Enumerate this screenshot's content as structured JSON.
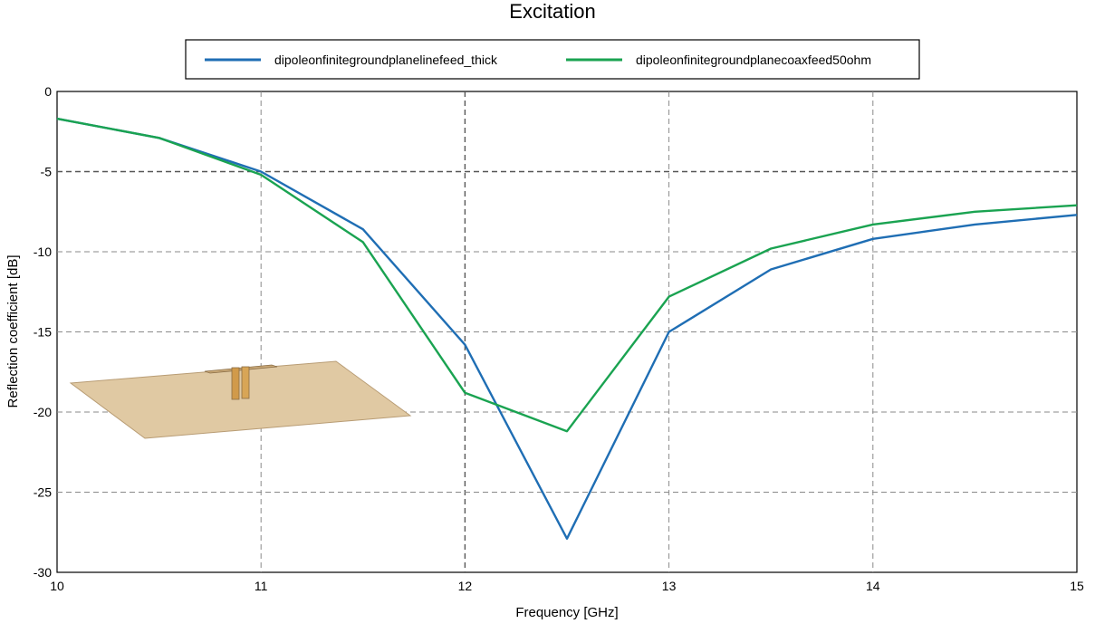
{
  "chart_data": {
    "type": "line",
    "title": "Excitation",
    "xlabel": "Frequency [GHz]",
    "ylabel": "Reflection coefficient [dB]",
    "xlim": [
      10,
      15
    ],
    "ylim": [
      -30,
      0
    ],
    "xticks": [
      10,
      11,
      12,
      13,
      14,
      15
    ],
    "yticks": [
      0,
      -5,
      -10,
      -15,
      -20,
      -25,
      -30
    ],
    "grid": true,
    "legend_position": "top-center",
    "x": [
      10,
      10.5,
      11,
      11.5,
      12,
      12.5,
      13,
      13.5,
      14,
      14.5,
      15
    ],
    "series": [
      {
        "name": "dipoleonfinitegroundplanelinefeed_thick",
        "color": "#1f6eb4",
        "values": [
          -1.7,
          -2.9,
          -5.0,
          -8.6,
          -15.8,
          -27.9,
          -15.0,
          -11.1,
          -9.2,
          -8.3,
          -7.7
        ]
      },
      {
        "name": "dipoleonfinitegroundplanecoaxfeed50ohm",
        "color": "#1aa351",
        "values": [
          -1.7,
          -2.9,
          -5.2,
          -9.4,
          -18.8,
          -21.2,
          -12.8,
          -9.8,
          -8.3,
          -7.5,
          -7.1
        ]
      }
    ]
  },
  "inset": {
    "icon": "dipole-on-ground-plane-model",
    "plate_color": "#e0c9a3",
    "dipole_color": "#d19a4a"
  }
}
